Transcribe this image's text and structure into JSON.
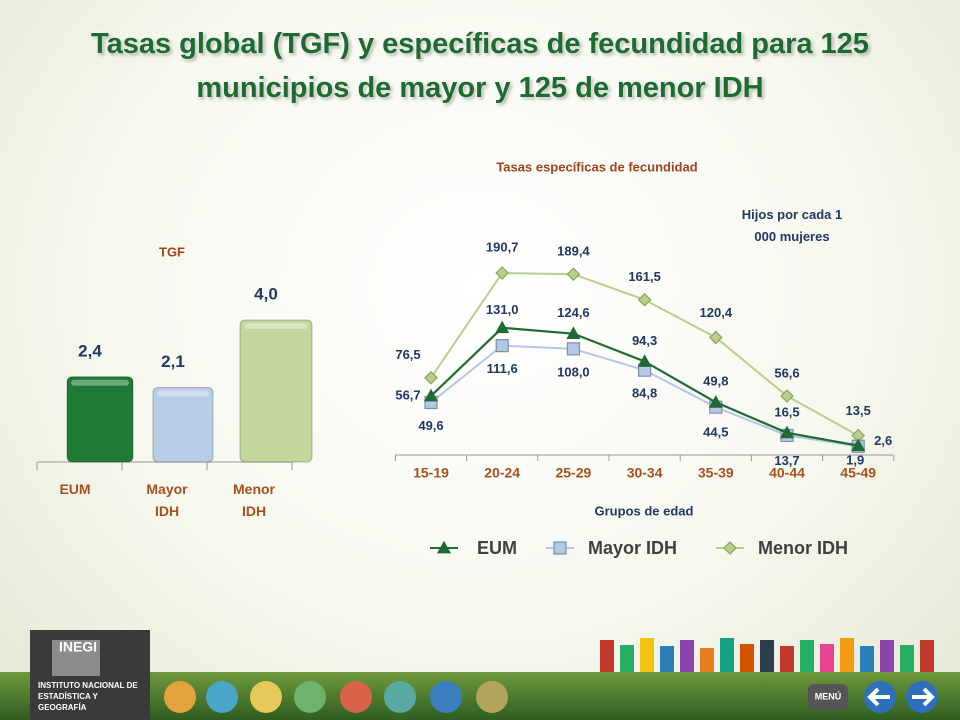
{
  "title": "Tasas global (TGF) y específicas de fecundidad para 125 municipios de mayor y 125 de menor IDH",
  "chart_data": [
    {
      "type": "bar",
      "title": "TGF",
      "categories": [
        "EUM",
        "Mayor IDH",
        "Menor IDH"
      ],
      "values": [
        2.4,
        2.1,
        4.0
      ],
      "value_labels": [
        "2,4",
        "2,1",
        "4,0"
      ],
      "colors": [
        "#1e7a34",
        "#b9cde6",
        "#c3d69b"
      ]
    },
    {
      "type": "line",
      "title": "Tasas específicas de fecundidad",
      "annotation": "Hijos por cada 1 000 mujeres",
      "x_label": "Grupos de edad",
      "categories": [
        "15-19",
        "20-24",
        "25-29",
        "30-34",
        "35-39",
        "40-44",
        "45-49"
      ],
      "series": [
        {
          "name": "EUM",
          "color": "#1f6b33",
          "marker": "triangle",
          "values": [
            56.7,
            131.0,
            124.6,
            94.3,
            49.8,
            16.5,
            2.6
          ],
          "value_labels": [
            "56,7",
            "131,0",
            "124,6",
            "94,3",
            "49,8",
            "16,5",
            "2,6"
          ]
        },
        {
          "name": "Mayor IDH",
          "color": "#b4c7e7",
          "marker": "square",
          "values": [
            49.6,
            111.6,
            108.0,
            84.8,
            44.5,
            13.7,
            1.9
          ],
          "value_labels": [
            "49,6",
            "111,6",
            "108,0",
            "84,8",
            "44,5",
            "13,7",
            "1,9"
          ]
        },
        {
          "name": "Menor IDH",
          "color": "#b7d08c",
          "marker": "diamond",
          "values": [
            76.5,
            190.7,
            189.4,
            161.5,
            120.4,
            56.6,
            13.5
          ],
          "value_labels": [
            "76,5",
            "190,7",
            "189,4",
            "161,5",
            "120,4",
            "56,6",
            "13,5"
          ]
        }
      ],
      "legend": "bottom"
    }
  ],
  "footer": {
    "logo": "INEGI",
    "institute": "INSTITUTO NACIONAL DE ESTADÍSTICA Y GEOGRAFÍA",
    "menu": "MENÚ"
  }
}
